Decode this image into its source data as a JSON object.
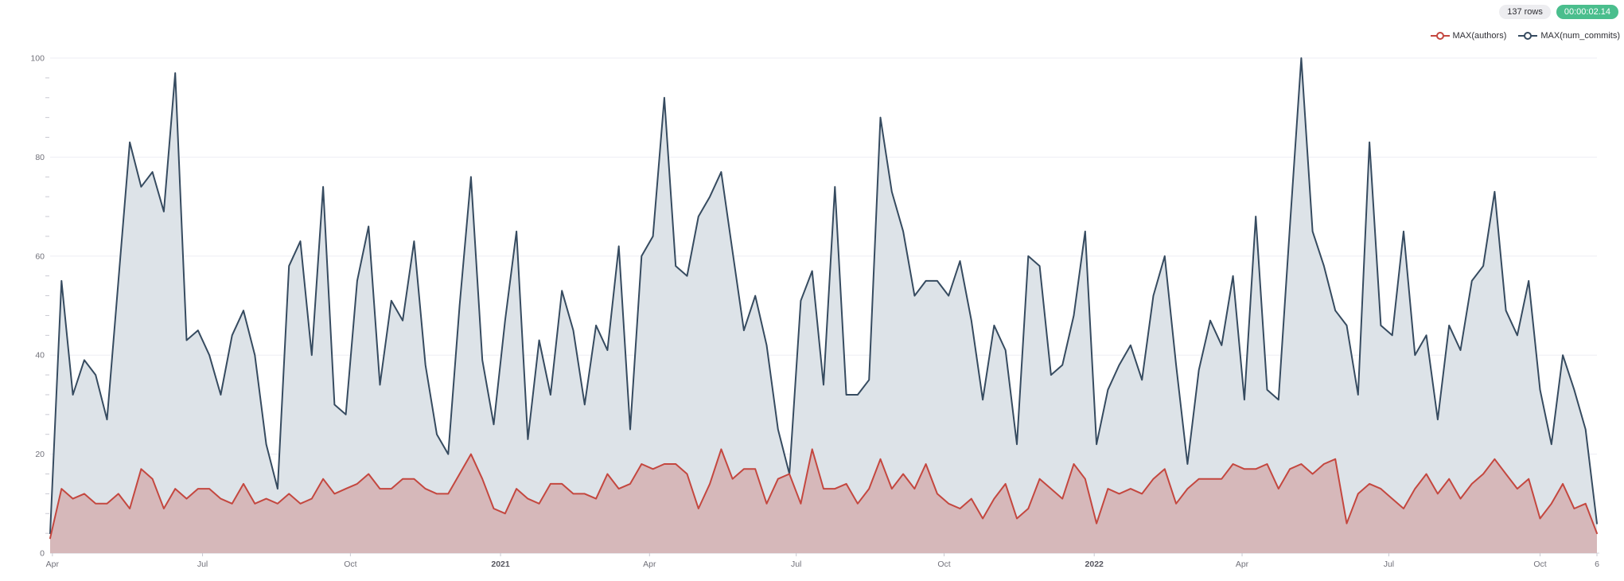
{
  "header": {
    "row_count_badge": "137 rows",
    "elapsed_time_badge": "00:00:02.14",
    "badge_colors": {
      "rows_bg": "#ededf0",
      "time_bg": "#4abe8d",
      "time_text": "#ffffff"
    }
  },
  "legend": {
    "position": "top-right",
    "items": [
      {
        "label": "MAX(authors)",
        "color": "#c4473f"
      },
      {
        "label": "MAX(num_commits)",
        "color": "#364b60"
      }
    ]
  },
  "chart_data": {
    "type": "area",
    "title": "",
    "xlabel": "",
    "ylabel": "",
    "grid": true,
    "legend_position": "top-right",
    "x_unit": "week",
    "n_points": 137,
    "x_axis": {
      "ticks": [
        {
          "label": "Apr",
          "week": 0.2,
          "bold": false
        },
        {
          "label": "Jul",
          "week": 13.4,
          "bold": false
        },
        {
          "label": "Oct",
          "week": 26.4,
          "bold": false
        },
        {
          "label": "2021",
          "week": 39.6,
          "bold": true
        },
        {
          "label": "Apr",
          "week": 52.7,
          "bold": false
        },
        {
          "label": "Jul",
          "week": 65.6,
          "bold": false
        },
        {
          "label": "Oct",
          "week": 78.6,
          "bold": false
        },
        {
          "label": "2022",
          "week": 91.8,
          "bold": true
        },
        {
          "label": "Apr",
          "week": 104.8,
          "bold": false
        },
        {
          "label": "Jul",
          "week": 117.7,
          "bold": false
        },
        {
          "label": "Oct",
          "week": 131.0,
          "bold": false
        },
        {
          "label": "6",
          "week": 136.0,
          "bold": false
        }
      ]
    },
    "y_axis": {
      "min": 0,
      "max": 100,
      "major_step": 20,
      "minor_step": 4,
      "labels": [
        "0",
        "20",
        "40",
        "60",
        "80",
        "100"
      ]
    },
    "series": [
      {
        "name": "MAX(num_commits)",
        "color": "#364b60",
        "fill": "#dde3e8",
        "values": [
          4,
          55,
          32,
          39,
          36,
          27,
          55,
          83,
          74,
          77,
          69,
          97,
          43,
          45,
          40,
          32,
          44,
          49,
          40,
          22,
          13,
          58,
          63,
          40,
          74,
          30,
          28,
          55,
          66,
          34,
          51,
          47,
          63,
          38,
          24,
          20,
          50,
          76,
          39,
          26,
          47,
          65,
          23,
          43,
          32,
          53,
          45,
          30,
          46,
          41,
          62,
          25,
          60,
          64,
          92,
          58,
          56,
          68,
          72,
          77,
          61,
          45,
          52,
          42,
          25,
          16,
          51,
          57,
          34,
          74,
          32,
          32,
          35,
          88,
          73,
          65,
          52,
          55,
          55,
          52,
          59,
          47,
          31,
          46,
          41,
          22,
          60,
          58,
          36,
          38,
          48,
          65,
          22,
          33,
          38,
          42,
          35,
          52,
          60,
          38,
          18,
          37,
          47,
          42,
          56,
          31,
          68,
          33,
          31,
          66,
          100,
          65,
          58,
          49,
          46,
          32,
          83,
          46,
          44,
          65,
          40,
          44,
          27,
          46,
          41,
          55,
          58,
          73,
          49,
          44,
          55,
          33,
          22,
          40,
          33,
          25,
          6
        ]
      },
      {
        "name": "MAX(authors)",
        "color": "#c4473f",
        "fill": "rgba(196,71,63,0.27)",
        "values": [
          3,
          13,
          11,
          12,
          10,
          10,
          12,
          9,
          17,
          15,
          9,
          13,
          11,
          13,
          13,
          11,
          10,
          14,
          10,
          11,
          10,
          12,
          10,
          11,
          15,
          12,
          13,
          14,
          16,
          13,
          13,
          15,
          15,
          13,
          12,
          12,
          16,
          20,
          15,
          9,
          8,
          13,
          11,
          10,
          14,
          14,
          12,
          12,
          11,
          16,
          13,
          14,
          18,
          17,
          18,
          18,
          16,
          9,
          14,
          21,
          15,
          17,
          17,
          10,
          15,
          16,
          10,
          21,
          13,
          13,
          14,
          10,
          13,
          19,
          13,
          16,
          13,
          18,
          12,
          10,
          9,
          11,
          7,
          11,
          14,
          7,
          9,
          15,
          13,
          11,
          18,
          15,
          6,
          13,
          12,
          13,
          12,
          15,
          17,
          10,
          13,
          15,
          15,
          15,
          18,
          17,
          17,
          18,
          13,
          17,
          18,
          16,
          18,
          19,
          6,
          12,
          14,
          13,
          11,
          9,
          13,
          16,
          12,
          15,
          11,
          14,
          16,
          19,
          16,
          13,
          15,
          7,
          10,
          14,
          9,
          10,
          4
        ]
      }
    ],
    "style": {
      "gridline_color": "#ededf4",
      "axis_line_color": "#d6d6de",
      "tick_color": "#c9c9d2",
      "label_color": "#71717a",
      "bold_label_color": "#55555e",
      "background": "#ffffff"
    }
  }
}
